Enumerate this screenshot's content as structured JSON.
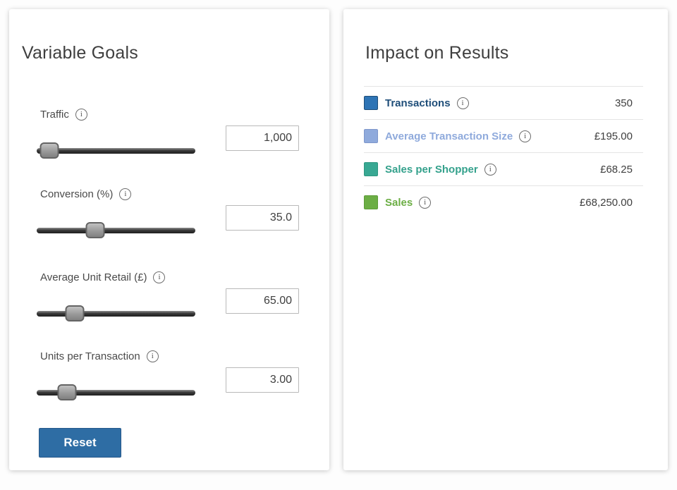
{
  "variable_goals": {
    "title": "Variable Goals",
    "sliders": [
      {
        "label": "Traffic",
        "value": "1,000",
        "handle_position": "8%"
      },
      {
        "label": "Conversion (%)",
        "value": "35.0",
        "handle_position": "37%"
      },
      {
        "label": "Average Unit Retail (£)",
        "value": "65.00",
        "handle_position": "24%"
      },
      {
        "label": "Units per Transaction",
        "value": "3.00",
        "handle_position": "19%"
      }
    ],
    "reset_label": "Reset",
    "reset_color": "#2E6DA4"
  },
  "impact_on_results": {
    "title": "Impact on Results",
    "rows": [
      {
        "label": "Transactions",
        "value": "350",
        "swatch_color": "#2E74B5",
        "swatch_border": "#1F4E79",
        "label_color": "#1F4E79"
      },
      {
        "label": "Average Transaction Size",
        "value": "£195.00",
        "swatch_color": "#8FAADC",
        "swatch_border": "#7E97CB",
        "label_color": "#8FAADC"
      },
      {
        "label": "Sales per Shopper",
        "value": "£68.25",
        "swatch_color": "#38A893",
        "swatch_border": "#2E9680",
        "label_color": "#34A18C"
      },
      {
        "label": "Sales",
        "value": "£68,250.00",
        "swatch_color": "#6CAE45",
        "swatch_border": "#5D9C39",
        "label_color": "#6CAE45"
      }
    ]
  },
  "icons": {
    "info": "i"
  }
}
